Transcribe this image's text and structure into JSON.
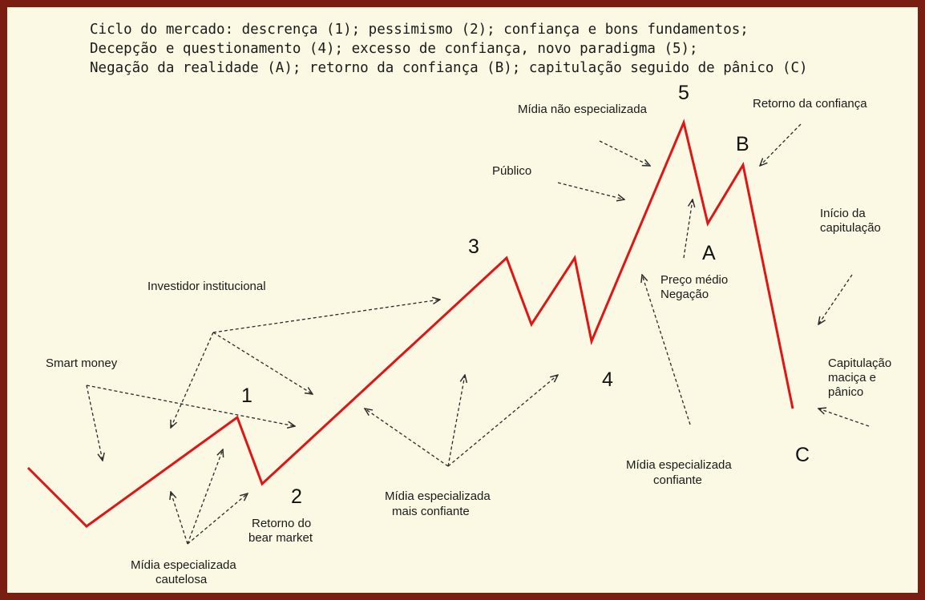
{
  "header": {
    "line1": "Ciclo do mercado: descrença (1); pessimismo (2); confiança e bons fundamentos;",
    "line2": "Decepção e questionamento (4); excesso de confiança, novo paradigma (5);",
    "line3": "Negação da realidade (A); retorno da confiança (B); capitulação seguido de pânico (C)"
  },
  "colors": {
    "frame": "#7a1e12",
    "background": "#fbf8e3",
    "price_line": "#e01515"
  },
  "points": {
    "p1": "1",
    "p2": "2",
    "p3": "3",
    "p4": "4",
    "p5": "5",
    "pA": "A",
    "pB": "B",
    "pC": "C"
  },
  "labels": {
    "smart_money": "Smart money",
    "investidor_institucional": "Investidor institucional",
    "publico": "Público",
    "midia_nao_especializada": "Mídia não especializada",
    "retorno_confianca": "Retorno da confiança",
    "inicio_capitulacao_1": "Início da",
    "inicio_capitulacao_2": "capitulação",
    "preco_medio": "Preço médio",
    "negacao": "Negação",
    "capitulacao_1": "Capitulação",
    "capitulacao_2": "maciça e",
    "capitulacao_3": "pânico",
    "midia_confiante_1": "Mídia especializada",
    "midia_confiante_2": "confiante",
    "midia_mais_confiante_1": "Mídia especializada",
    "midia_mais_confiante_2": "mais confiante",
    "retorno_bear_1": "Retorno do",
    "retorno_bear_2": "bear market",
    "midia_cautelosa_1": "Mídia especializada",
    "midia_cautelosa_2": "cautelosa"
  }
}
